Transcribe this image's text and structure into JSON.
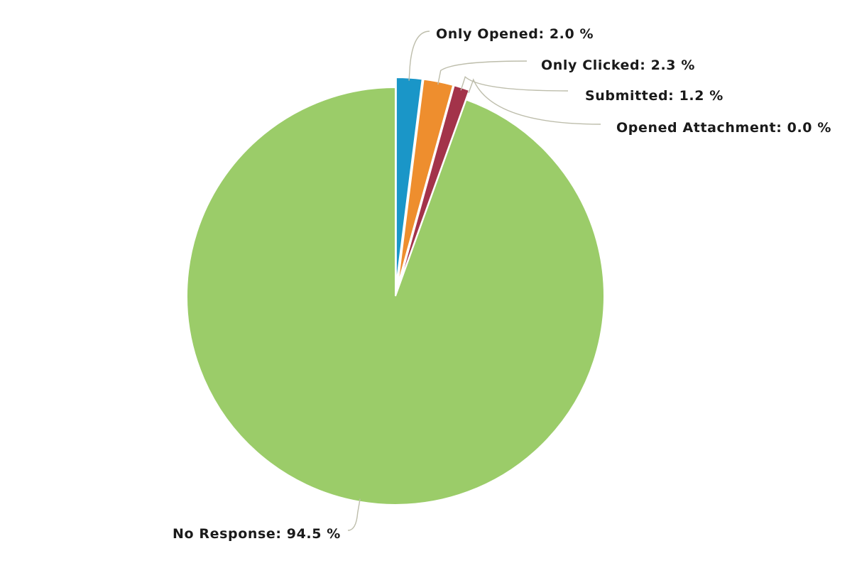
{
  "chart_data": {
    "type": "pie",
    "title": "",
    "slices": [
      {
        "label": "Only Opened",
        "value": 2.0,
        "display": "Only Opened: 2.0 %",
        "color": "#1a96c8",
        "exploded": true
      },
      {
        "label": "Only Clicked",
        "value": 2.3,
        "display": "Only Clicked: 2.3 %",
        "color": "#ee8e2e",
        "exploded": true
      },
      {
        "label": "Submitted",
        "value": 1.2,
        "display": "Submitted: 1.2 %",
        "color": "#a3334a",
        "exploded": true
      },
      {
        "label": "Opened Attachment",
        "value": 0.0,
        "display": "Opened Attachment: 0.0 %",
        "color": "#7a3fa0",
        "exploded": true
      },
      {
        "label": "No Response",
        "value": 94.5,
        "display": "No Response: 94.5 %",
        "color": "#9bcc69",
        "exploded": false
      }
    ],
    "legend": "none",
    "data_labels": "outside-with-connectors",
    "start_angle": "12 o'clock, clockwise"
  }
}
